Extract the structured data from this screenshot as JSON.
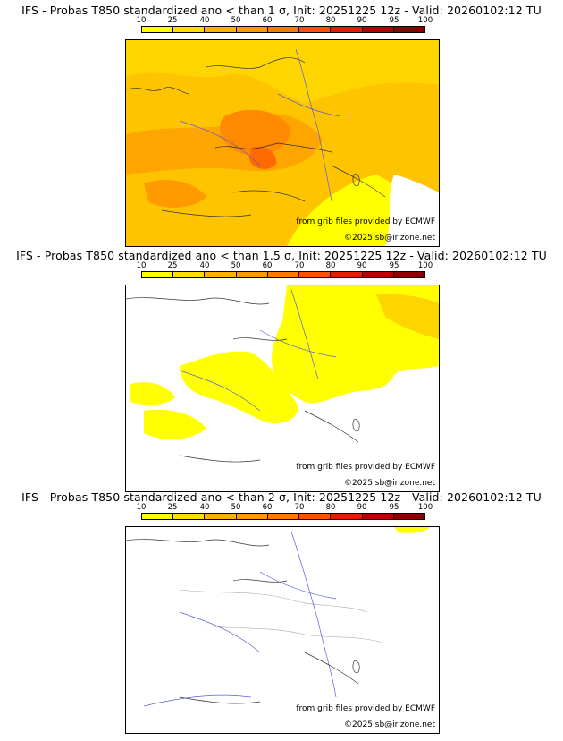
{
  "legend": {
    "ticks": [
      "10",
      "25",
      "40",
      "50",
      "60",
      "70",
      "80",
      "90",
      "95",
      "100"
    ],
    "colors": [
      "#ffff00",
      "#ffdd00",
      "#ffb000",
      "#ff9a00",
      "#ff7a00",
      "#ff5000",
      "#e51d00",
      "#b80000",
      "#8a0000",
      "#5a0000"
    ]
  },
  "panels": [
    {
      "title": "IFS - Probas T850  standardized ano < than 1 σ, Init: 20251225 12z - Valid: 20260102:12 TU",
      "credit": "from grib files provided by ECMWF",
      "copyright": "©2025 sb@irizone.net"
    },
    {
      "title": "IFS - Probas T850  standardized ano < than 1.5 σ, Init: 20251225 12z - Valid: 20260102:12 TU",
      "credit": "from grib files provided by ECMWF",
      "copyright": "©2025 sb@irizone.net"
    },
    {
      "title": "IFS - Probas T850  standardized ano < than 2 σ, Init: 20251225 12z - Valid: 20260102:12 TU",
      "credit": "from grib files provided by ECMWF",
      "copyright": "©2025 sb@irizone.net"
    }
  ]
}
